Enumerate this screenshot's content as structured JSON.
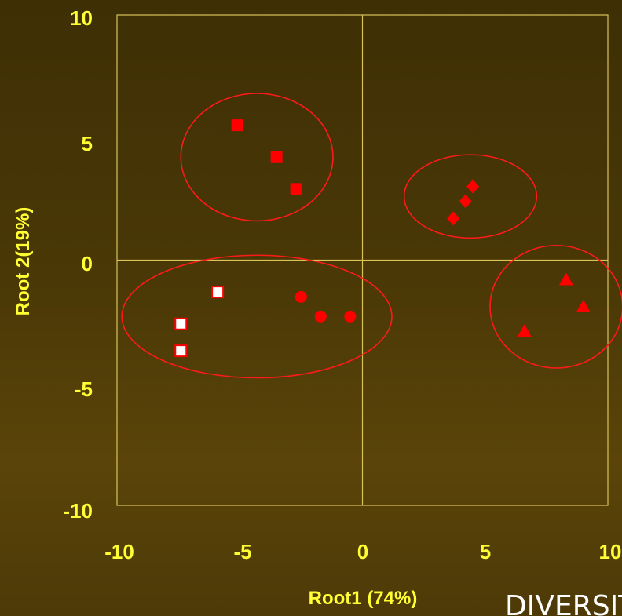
{
  "chart_data": {
    "type": "scatter",
    "title": "",
    "xlabel": "Root1 (74%)",
    "ylabel": "Root 2(19%)",
    "xlim": [
      -10,
      10
    ],
    "ylim": [
      -10,
      10
    ],
    "xticks": [
      "-10",
      "-5",
      "0",
      "5",
      "10"
    ],
    "yticks": [
      "10",
      "5",
      "0",
      "-5",
      "-10"
    ],
    "grid": false,
    "zero_lines": true,
    "colors": {
      "axis": "#d8c25a",
      "marker": "#ff0000",
      "ellipse": "#ff1a1a",
      "hollow_fill": "#ffffff",
      "label": "#ffff33"
    },
    "series": [
      {
        "marker": "square-filled",
        "points": [
          [
            -5.1,
            5.5
          ],
          [
            -3.5,
            4.2
          ],
          [
            -2.7,
            2.9
          ]
        ]
      },
      {
        "marker": "diamond-filled",
        "points": [
          [
            3.7,
            1.7
          ],
          [
            4.2,
            2.4
          ],
          [
            4.5,
            3.0
          ]
        ]
      },
      {
        "marker": "square-hollow",
        "points": [
          [
            -5.9,
            -1.3
          ],
          [
            -7.4,
            -2.6
          ],
          [
            -7.4,
            -3.7
          ]
        ]
      },
      {
        "marker": "circle-filled",
        "points": [
          [
            -2.5,
            -1.5
          ],
          [
            -1.7,
            -2.3
          ],
          [
            -0.5,
            -2.3
          ]
        ]
      },
      {
        "marker": "triangle-filled",
        "points": [
          [
            8.3,
            -0.8
          ],
          [
            9.0,
            -1.9
          ],
          [
            6.6,
            -2.9
          ]
        ]
      }
    ],
    "ellipses": [
      {
        "cx": -4.3,
        "cy": 4.2,
        "rx": 3.1,
        "ry": 2.6
      },
      {
        "cx": 4.4,
        "cy": 2.6,
        "rx": 2.7,
        "ry": 1.7
      },
      {
        "cx": -4.3,
        "cy": -2.3,
        "rx": 5.5,
        "ry": 2.5
      },
      {
        "cx": 7.9,
        "cy": -1.9,
        "rx": 2.7,
        "ry": 2.5
      }
    ]
  },
  "footer": {
    "text": "DIVERSITY"
  }
}
